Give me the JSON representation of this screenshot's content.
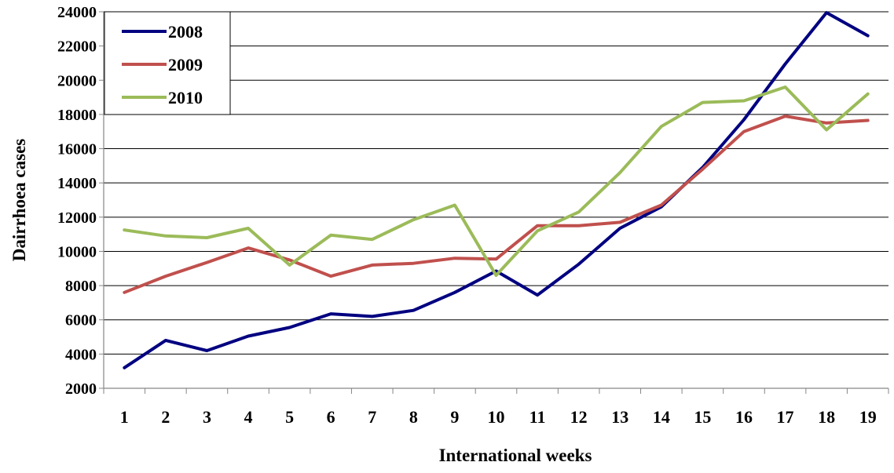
{
  "chart_data": {
    "type": "line",
    "title": "",
    "xlabel": "International weeks",
    "ylabel": "Dairrhoea cases",
    "categories": [
      "1",
      "2",
      "3",
      "4",
      "5",
      "6",
      "7",
      "8",
      "9",
      "10",
      "11",
      "12",
      "13",
      "14",
      "15",
      "16",
      "17",
      "18",
      "19"
    ],
    "ylim": [
      2000,
      24000
    ],
    "yticks": [
      2000,
      4000,
      6000,
      8000,
      10000,
      12000,
      14000,
      16000,
      18000,
      20000,
      22000,
      24000
    ],
    "grid": true,
    "legend_position": "top-left",
    "series": [
      {
        "name": "2008",
        "color": "#000080",
        "values": [
          3200,
          4800,
          4200,
          5050,
          5550,
          6350,
          6200,
          6550,
          7600,
          8850,
          7450,
          9250,
          11350,
          12600,
          14900,
          17700,
          20950,
          23950,
          22600
        ]
      },
      {
        "name": "2009",
        "color": "#C0504D",
        "values": [
          7600,
          8550,
          9350,
          10200,
          9500,
          8550,
          9200,
          9300,
          9600,
          9550,
          11500,
          11500,
          11700,
          12700,
          14800,
          17000,
          17900,
          17500,
          17650
        ]
      },
      {
        "name": "2010",
        "color": "#9BBB59",
        "values": [
          11250,
          10900,
          10800,
          11350,
          9200,
          10950,
          10700,
          11850,
          12700,
          8600,
          11200,
          12300,
          14600,
          17300,
          18700,
          18800,
          19600,
          17100,
          19200
        ]
      }
    ]
  }
}
